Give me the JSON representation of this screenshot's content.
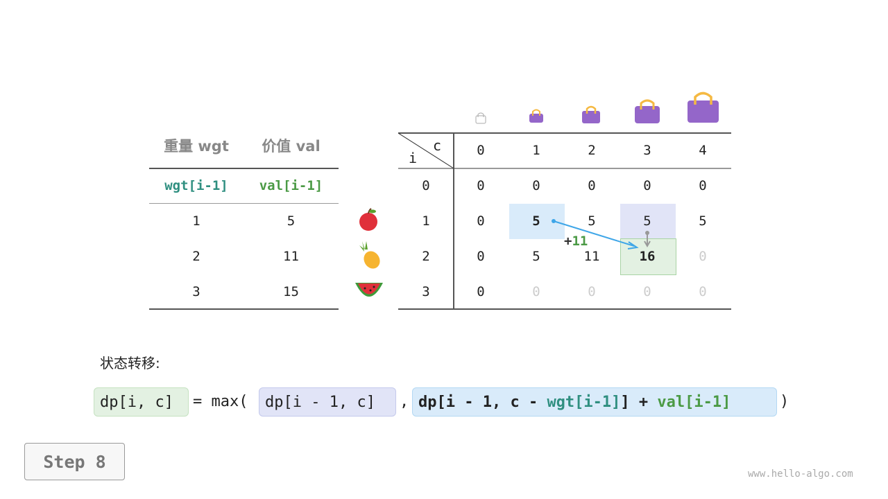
{
  "items_table": {
    "headers": [
      "重量 wgt",
      "价值 val"
    ],
    "subheaders": [
      "wgt[i-1]",
      "val[i-1]"
    ],
    "rows": [
      [
        "1",
        "5"
      ],
      [
        "2",
        "11"
      ],
      [
        "3",
        "15"
      ]
    ],
    "item_icons": [
      "apple-icon",
      "pineapple-icon",
      "watermelon-icon"
    ]
  },
  "dp_table": {
    "row_label": "i",
    "col_label": "c",
    "cols": [
      "0",
      "1",
      "2",
      "3",
      "4"
    ],
    "row_indices": [
      "0",
      "1",
      "2",
      "3"
    ],
    "rows": [
      [
        "0",
        "0",
        "0",
        "0",
        "0"
      ],
      [
        "0",
        "5",
        "5",
        "5",
        "5"
      ],
      [
        "0",
        "5",
        "11",
        "16",
        "0"
      ],
      [
        "0",
        "0",
        "0",
        "0",
        "0"
      ]
    ],
    "annotation": {
      "plus": "+",
      "value": "11"
    }
  },
  "colors": {
    "blue_cell": "#d9ebfa",
    "purple_cell": "#e1e4f7",
    "green_cell": "#e3f1e2",
    "wgt": "#2f8f80",
    "val": "#4b9a45",
    "bag": "#9466c9"
  },
  "formula": {
    "label": "状态转移:",
    "lhs": "dp[i, c]",
    "eq_max": "= max(",
    "opt1": "dp[i - 1, c]",
    "comma": ",",
    "opt2_a": "dp[i - 1, c - ",
    "opt2_wgt": "wgt[i-1]",
    "opt2_b": "] + ",
    "opt2_val": "val[i-1]",
    "close": ")"
  },
  "step_button": "Step 8",
  "watermark": "www.hello-algo.com"
}
